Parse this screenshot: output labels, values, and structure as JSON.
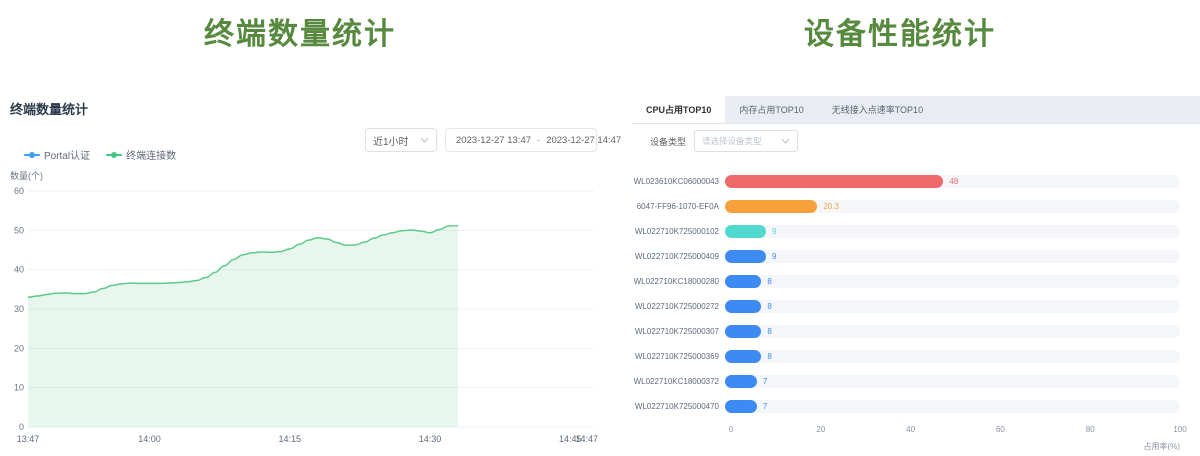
{
  "left_panel": {
    "big_title": "终端数量统计",
    "header": "终端数量统计",
    "range_select": {
      "value": "近1小时"
    },
    "date_range": {
      "start": "2023-12-27 13:47",
      "separator": "-",
      "end": "2023-12-27 14:47"
    },
    "legend": [
      {
        "label": "Portal认证",
        "color": "#3a9ef5"
      },
      {
        "label": "终端连接数",
        "color": "#41c686"
      }
    ]
  },
  "right_panel": {
    "big_title": "设备性能统计",
    "tabs": [
      {
        "label": "CPU占用TOP10",
        "active": true
      },
      {
        "label": "内存占用TOP10",
        "active": false
      },
      {
        "label": "无线接入点速率TOP10",
        "active": false
      }
    ],
    "device_type": {
      "label": "设备类型",
      "placeholder": "请选择设备类型"
    }
  },
  "chart_data": [
    {
      "type": "area",
      "title": "终端数量统计",
      "ylabel": "数量(个)",
      "ylim": [
        0,
        60
      ],
      "y_ticks": [
        0,
        10,
        20,
        30,
        40,
        50,
        60
      ],
      "grid": true,
      "legend_position": "top-left",
      "x_axis": {
        "start": "13:47",
        "end": "14:47",
        "tick_labels": [
          "13:47",
          "14:00",
          "14:15",
          "14:30",
          "14:45",
          "14:47"
        ],
        "tick_minutes": [
          0,
          13,
          28,
          43,
          58,
          60
        ]
      },
      "series": [
        {
          "name": "Portal认证",
          "color": "#3a9ef5",
          "values": []
        },
        {
          "name": "终端连接数",
          "color": "#5fc98b",
          "area_fill": "rgba(95,200,135,0.14)",
          "interval_minutes": 1,
          "values": [
            33,
            33.3,
            33.7,
            34,
            34.1,
            33.9,
            33.9,
            34.3,
            35.2,
            36,
            36.4,
            36.6,
            36.5,
            36.5,
            36.5,
            36.6,
            36.7,
            36.9,
            37.2,
            38,
            39.3,
            41,
            42.6,
            43.8,
            44.3,
            44.5,
            44.4,
            44.6,
            45.3,
            46.4,
            47.5,
            48.1,
            47.8,
            46.9,
            46.2,
            46.3,
            47,
            48,
            48.8,
            49.4,
            49.9,
            50.1,
            49.8,
            49.4,
            50.2,
            51.1,
            51.2
          ]
        }
      ]
    },
    {
      "type": "bar",
      "orientation": "horizontal",
      "title": "CPU占用TOP10",
      "xlabel": "占用率(%)",
      "xlim": [
        0,
        100
      ],
      "x_ticks": [
        0,
        20,
        40,
        60,
        80,
        100
      ],
      "categories": [
        "WL023610KC06000043",
        "6047-FF96-1070-EF0A",
        "WL022710K725000102",
        "WL022710K725000409",
        "WL022710KC18000280",
        "WL022710K725000272",
        "WL022710K725000307",
        "WL022710K725000369",
        "WL022710KC18000372",
        "WL022710K725000470"
      ],
      "values": [
        48,
        20.3,
        9,
        9,
        8,
        8,
        8,
        8,
        7,
        7
      ],
      "bar_colors": [
        "#ee6a6a",
        "#f7a13c",
        "#52d9cf",
        "#3d8af2",
        "#3d8af2",
        "#3d8af2",
        "#3d8af2",
        "#3d8af2",
        "#3d8af2",
        "#3d8af2"
      ]
    }
  ]
}
